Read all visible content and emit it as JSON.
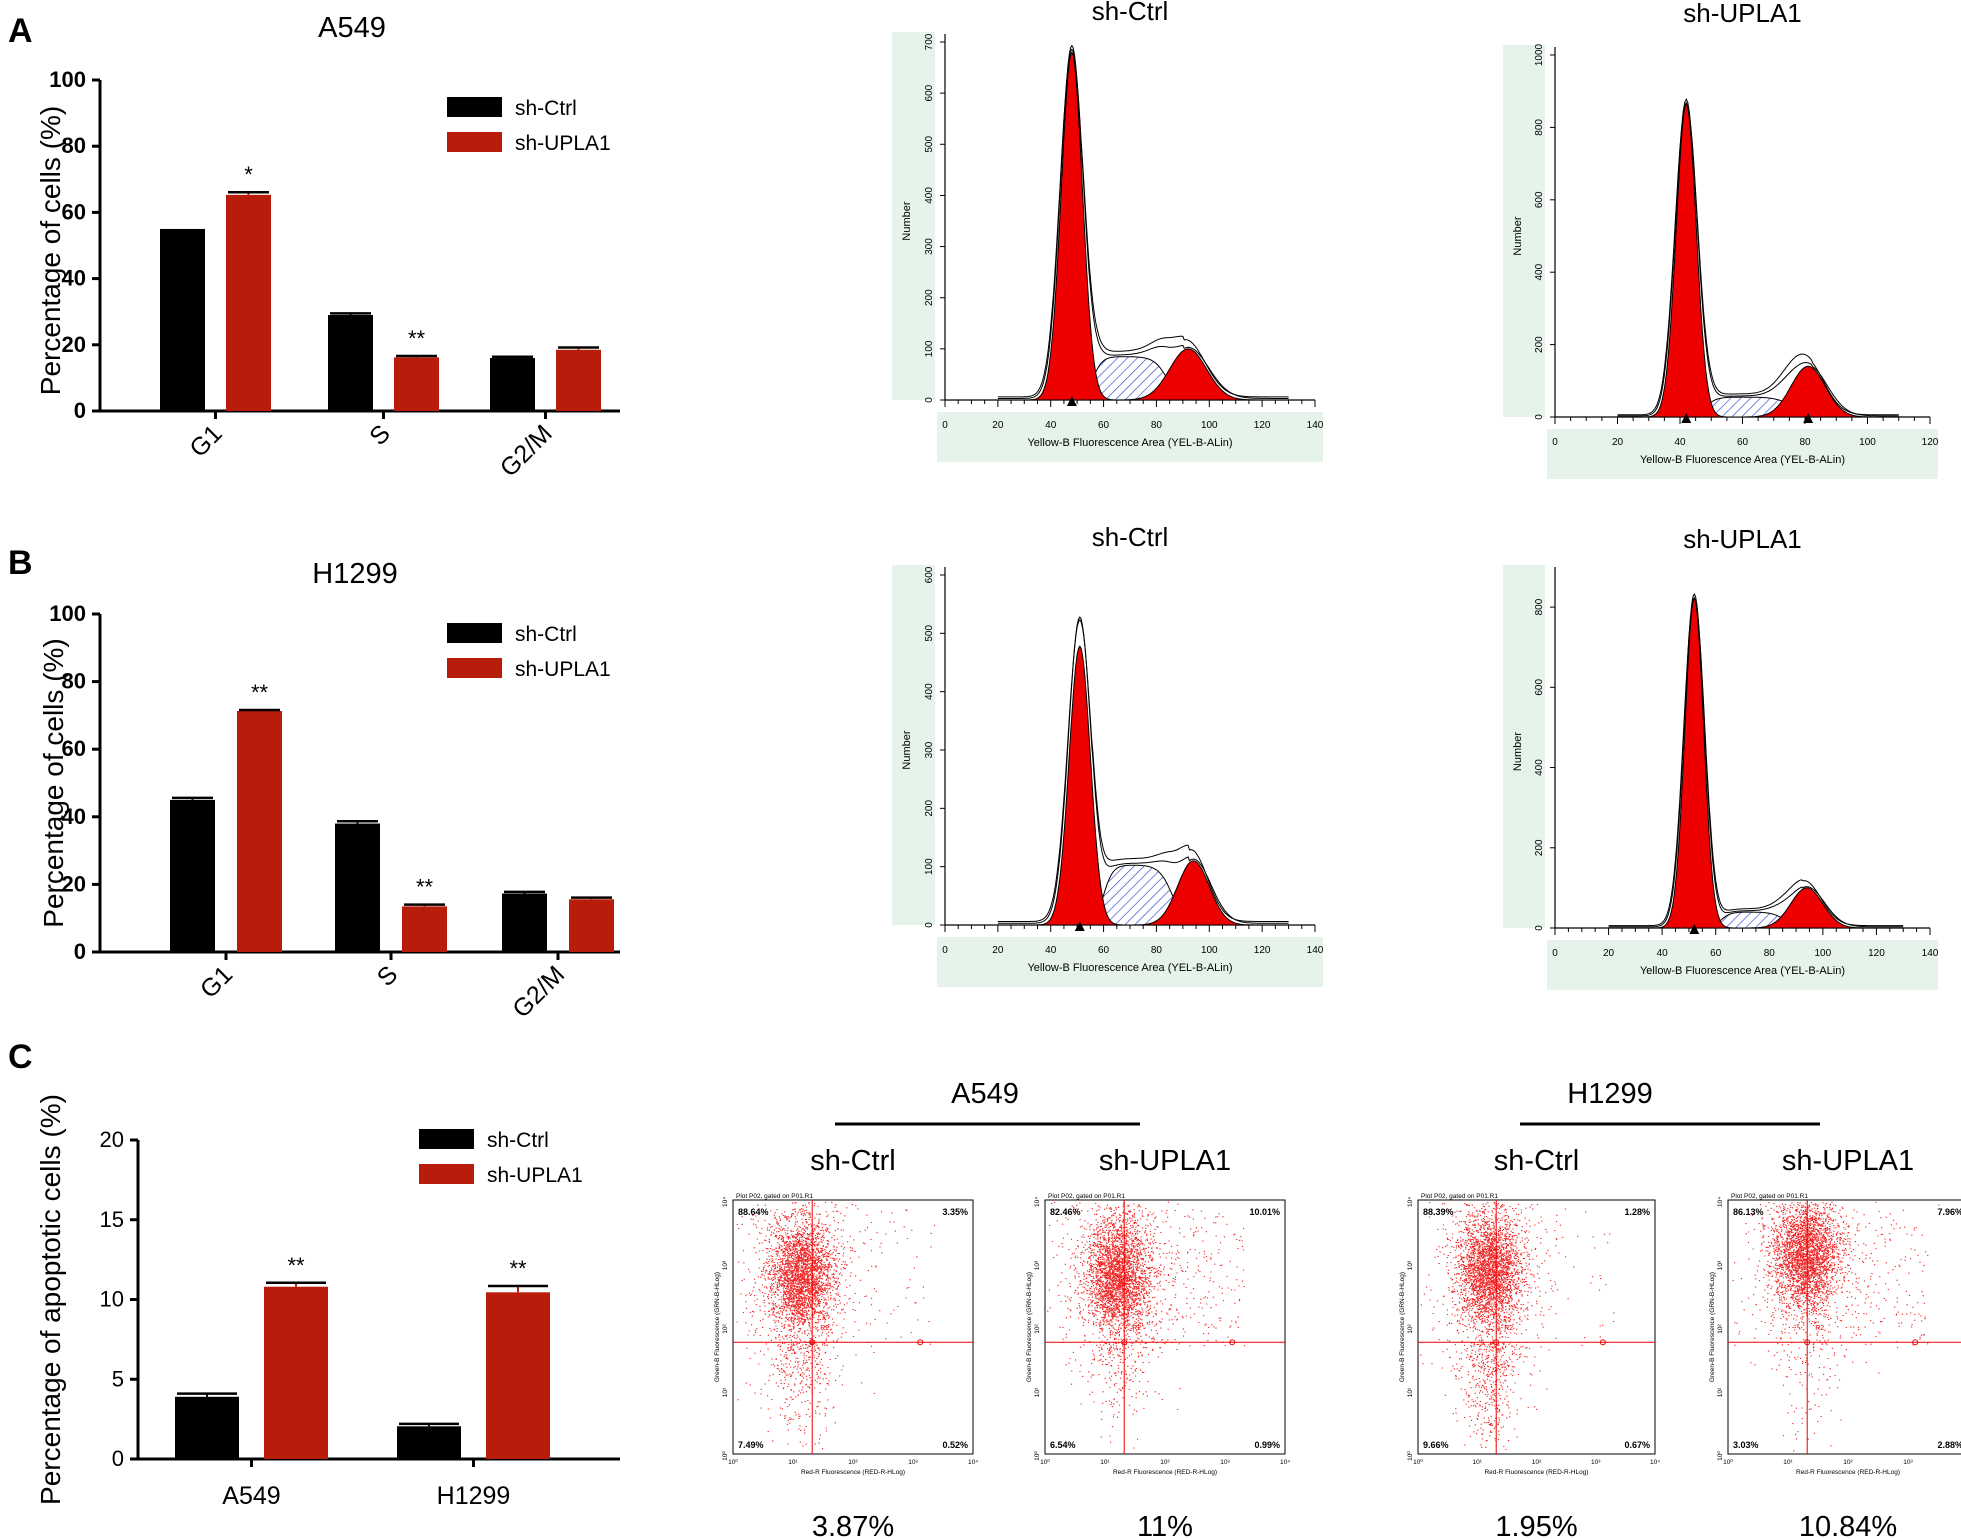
{
  "colors": {
    "ctrl": "#000000",
    "upla1": "#b81c0a",
    "flow_red": "#ee0000",
    "flow_bg": "#e6f3ea",
    "hatch": "#3344cc"
  },
  "panels": {
    "a": "A",
    "b": "B",
    "c": "C"
  },
  "legend": {
    "ctrl": "sh-Ctrl",
    "upla1": "sh-UPLA1"
  },
  "chart_data": [
    {
      "id": "A",
      "type": "bar",
      "title": "A549",
      "ylabel": "Percentage of cells (%)",
      "xlabel": "",
      "ylim": [
        0,
        100
      ],
      "yticks": [
        "0",
        "20",
        "40",
        "60",
        "80",
        "100"
      ],
      "categories": [
        "G1",
        "S",
        "G2/M"
      ],
      "series": [
        {
          "name": "sh-Ctrl",
          "values": [
            55,
            29,
            16
          ],
          "errors": [
            0,
            0.5,
            0.4
          ]
        },
        {
          "name": "sh-UPLA1",
          "values": [
            65.3,
            16.2,
            18.5
          ],
          "errors": [
            0.8,
            0.4,
            0.7
          ]
        }
      ],
      "significance": [
        "*",
        "**",
        ""
      ]
    },
    {
      "id": "B",
      "type": "bar",
      "title": "H1299",
      "ylabel": "Percentage of cells (%)",
      "xlabel": "",
      "ylim": [
        0,
        100
      ],
      "yticks": [
        "0",
        "20",
        "40",
        "60",
        "80",
        "100"
      ],
      "categories": [
        "G1",
        "S",
        "G2/M"
      ],
      "series": [
        {
          "name": "sh-Ctrl",
          "values": [
            45,
            38,
            17.3
          ],
          "errors": [
            0.6,
            0.7,
            0.5
          ]
        },
        {
          "name": "sh-UPLA1",
          "values": [
            71.3,
            13.5,
            15.6
          ],
          "errors": [
            0.3,
            0.5,
            0.5
          ]
        }
      ],
      "significance": [
        "**",
        "**",
        ""
      ]
    },
    {
      "id": "C",
      "type": "bar",
      "title": "",
      "ylabel": "Percentage of apoptotic cells (%)",
      "xlabel": "",
      "ylim": [
        0,
        20
      ],
      "yticks": [
        "0",
        "5",
        "10",
        "15",
        "20"
      ],
      "categories": [
        "A549",
        "H1299"
      ],
      "series": [
        {
          "name": "sh-Ctrl",
          "values": [
            3.9,
            2.05
          ],
          "errors": [
            0.2,
            0.15
          ]
        },
        {
          "name": "sh-UPLA1",
          "values": [
            10.8,
            10.45
          ],
          "errors": [
            0.25,
            0.4
          ]
        }
      ],
      "significance": [
        "**",
        "**"
      ]
    }
  ],
  "histograms": [
    {
      "title": "sh-Ctrl",
      "ylabel": "Number",
      "xlabel": "Yellow-B Fluorescence Area (YEL-B-ALin)",
      "yticks": [
        "0",
        "100",
        "200",
        "300",
        "400",
        "500",
        "600",
        "700"
      ],
      "ymax": 700,
      "xticks": [
        "0",
        "20",
        "40",
        "60",
        "80",
        "100",
        "120",
        "140"
      ],
      "xmax": 140,
      "g1_peak": {
        "pos": 48,
        "height": 690,
        "fill_height": 680,
        "sd": 4
      },
      "g2_peak": {
        "pos": 92,
        "height": 100,
        "sd": 7
      },
      "s_phase": {
        "start": 56,
        "end": 84,
        "level": 85
      }
    },
    {
      "title": "sh-UPLA1",
      "ylabel": "Number",
      "xlabel": "Yellow-B Fluorescence Area (YEL-B-ALin)",
      "yticks": [
        "0",
        "200",
        "400",
        "600",
        "800",
        "1000"
      ],
      "ymax": 1000,
      "xticks": [
        "0",
        "20",
        "40",
        "60",
        "80",
        "100",
        "120"
      ],
      "xmax": 120,
      "g1_peak": {
        "pos": 42,
        "height": 875,
        "fill_height": 865,
        "sd": 3.2
      },
      "g2_peak": {
        "pos": 81,
        "height": 140,
        "sd": 5.5
      },
      "s_phase": {
        "start": 48,
        "end": 76,
        "level": 55
      }
    },
    {
      "title": "sh-Ctrl",
      "ylabel": "Number",
      "xlabel": "Yellow-B Fluorescence Area (YEL-B-ALin)",
      "yticks": [
        "0",
        "100",
        "200",
        "300",
        "400",
        "500",
        "600"
      ],
      "ymax": 600,
      "xticks": [
        "0",
        "20",
        "40",
        "60",
        "80",
        "100",
        "120",
        "140"
      ],
      "xmax": 140,
      "g1_peak": {
        "pos": 51,
        "height": 525,
        "fill_height": 478,
        "sd": 4
      },
      "g2_peak": {
        "pos": 94,
        "height": 110,
        "sd": 6
      },
      "s_phase": {
        "start": 60,
        "end": 86,
        "level": 103
      }
    },
    {
      "title": "sh-UPLA1",
      "ylabel": "Number",
      "xlabel": "Yellow-B Fluorescence Area (YEL-B-ALin)",
      "yticks": [
        "0",
        "200",
        "400",
        "600",
        "800"
      ],
      "ymax": 880,
      "xticks": [
        "0",
        "20",
        "40",
        "60",
        "80",
        "100",
        "120",
        "140"
      ],
      "xmax": 140,
      "g1_peak": {
        "pos": 52,
        "height": 830,
        "fill_height": 822,
        "sd": 3.5
      },
      "g2_peak": {
        "pos": 94,
        "height": 100,
        "sd": 6
      },
      "s_phase": {
        "start": 62,
        "end": 86,
        "level": 40
      }
    }
  ],
  "apoptosis": {
    "groups": [
      {
        "label": "A549"
      },
      {
        "label": "H1299"
      }
    ],
    "plot_header": "Plot P02, gated on P01.R1",
    "xaxis": "Red-R Fluorescence (RED-R-HLog)",
    "yaxis": "Green-B Fluorescence (GRN-B-HLog)",
    "gate_label": "R2",
    "decade_ticks": [
      "10⁰",
      "10¹",
      "10²",
      "10³",
      "10⁴"
    ],
    "plots": [
      {
        "title": "sh-Ctrl",
        "ul": "88.64%",
        "ur": "3.35%",
        "ll": "7.49%",
        "lr": "0.52%",
        "total": "3.87%"
      },
      {
        "title": "sh-UPLA1",
        "ul": "82.46%",
        "ur": "10.01%",
        "ll": "6.54%",
        "lr": "0.99%",
        "total": "11%"
      },
      {
        "title": "sh-Ctrl",
        "ul": "88.39%",
        "ur": "1.28%",
        "ll": "9.66%",
        "lr": "0.67%",
        "total": "1.95%"
      },
      {
        "title": "sh-UPLA1",
        "ul": "86.13%",
        "ur": "7.96%",
        "ll": "3.03%",
        "lr": "2.88%",
        "total": "10.84%"
      }
    ]
  }
}
